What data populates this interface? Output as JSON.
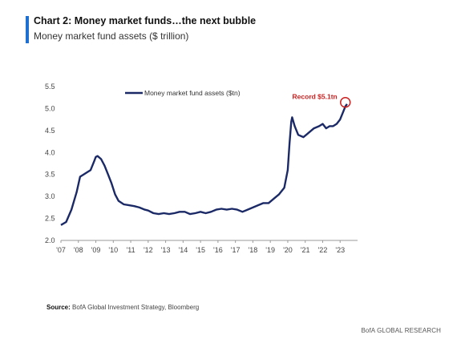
{
  "header": {
    "title": "Chart 2: Money market funds…the next bubble",
    "subtitle": "Money market fund assets ($ trillion)"
  },
  "footer": {
    "source_label": "Source:",
    "source_text": "BofA Global Investment Strategy, Bloomberg",
    "brand": "BofA GLOBAL RESEARCH"
  },
  "colors": {
    "series": "#1b2a66",
    "accent": "#1f6fd1",
    "annotation": "#cc1f1f"
  },
  "chart_data": {
    "type": "line",
    "title": "",
    "xlabel": "",
    "ylabel": "",
    "ylim": [
      2.0,
      5.5
    ],
    "xlim": [
      2007.0,
      2024.0
    ],
    "yticks": [
      2.0,
      2.5,
      3.0,
      3.5,
      4.0,
      4.5,
      5.0,
      5.5
    ],
    "ytick_labels": [
      "2.0",
      "2.5",
      "3.0",
      "3.5",
      "4.0",
      "4.5",
      "5.0",
      "5.5"
    ],
    "xticks": [
      2007,
      2008,
      2009,
      2010,
      2011,
      2012,
      2013,
      2014,
      2015,
      2016,
      2017,
      2018,
      2019,
      2020,
      2021,
      2022,
      2023
    ],
    "xtick_labels": [
      "'07",
      "'08",
      "'09",
      "'10",
      "'11",
      "'12",
      "'13",
      "'14",
      "'15",
      "'16",
      "'17",
      "'18",
      "'19",
      "'20",
      "'21",
      "'22",
      "'23"
    ],
    "grid": false,
    "legend": {
      "position": "top",
      "entries": [
        "Money market fund assets ($tn)"
      ]
    },
    "annotation": {
      "text": "Record $5.1tn",
      "x": 2023.3,
      "y": 5.14
    },
    "series": [
      {
        "name": "Money market fund assets ($tn)",
        "points": [
          [
            2007.0,
            2.35
          ],
          [
            2007.3,
            2.42
          ],
          [
            2007.6,
            2.7
          ],
          [
            2007.9,
            3.1
          ],
          [
            2008.1,
            3.45
          ],
          [
            2008.3,
            3.5
          ],
          [
            2008.5,
            3.55
          ],
          [
            2008.7,
            3.6
          ],
          [
            2008.9,
            3.8
          ],
          [
            2009.0,
            3.9
          ],
          [
            2009.1,
            3.92
          ],
          [
            2009.3,
            3.85
          ],
          [
            2009.5,
            3.7
          ],
          [
            2009.7,
            3.5
          ],
          [
            2009.9,
            3.3
          ],
          [
            2010.1,
            3.05
          ],
          [
            2010.3,
            2.9
          ],
          [
            2010.6,
            2.82
          ],
          [
            2010.9,
            2.8
          ],
          [
            2011.2,
            2.78
          ],
          [
            2011.5,
            2.75
          ],
          [
            2011.8,
            2.7
          ],
          [
            2012.0,
            2.68
          ],
          [
            2012.3,
            2.62
          ],
          [
            2012.6,
            2.6
          ],
          [
            2012.9,
            2.62
          ],
          [
            2013.2,
            2.6
          ],
          [
            2013.5,
            2.62
          ],
          [
            2013.8,
            2.65
          ],
          [
            2014.1,
            2.65
          ],
          [
            2014.4,
            2.6
          ],
          [
            2014.7,
            2.62
          ],
          [
            2015.0,
            2.65
          ],
          [
            2015.3,
            2.62
          ],
          [
            2015.6,
            2.65
          ],
          [
            2015.9,
            2.7
          ],
          [
            2016.2,
            2.72
          ],
          [
            2016.5,
            2.7
          ],
          [
            2016.8,
            2.72
          ],
          [
            2017.1,
            2.7
          ],
          [
            2017.4,
            2.65
          ],
          [
            2017.7,
            2.7
          ],
          [
            2018.0,
            2.75
          ],
          [
            2018.3,
            2.8
          ],
          [
            2018.6,
            2.85
          ],
          [
            2018.9,
            2.85
          ],
          [
            2019.2,
            2.95
          ],
          [
            2019.5,
            3.05
          ],
          [
            2019.8,
            3.2
          ],
          [
            2020.0,
            3.6
          ],
          [
            2020.1,
            4.2
          ],
          [
            2020.2,
            4.7
          ],
          [
            2020.25,
            4.8
          ],
          [
            2020.4,
            4.6
          ],
          [
            2020.6,
            4.4
          ],
          [
            2020.9,
            4.35
          ],
          [
            2021.2,
            4.45
          ],
          [
            2021.5,
            4.55
          ],
          [
            2021.8,
            4.6
          ],
          [
            2022.0,
            4.65
          ],
          [
            2022.2,
            4.55
          ],
          [
            2022.4,
            4.6
          ],
          [
            2022.6,
            4.6
          ],
          [
            2022.8,
            4.65
          ],
          [
            2023.0,
            4.75
          ],
          [
            2023.15,
            4.9
          ],
          [
            2023.3,
            5.05
          ],
          [
            2023.4,
            5.1
          ]
        ]
      }
    ]
  }
}
